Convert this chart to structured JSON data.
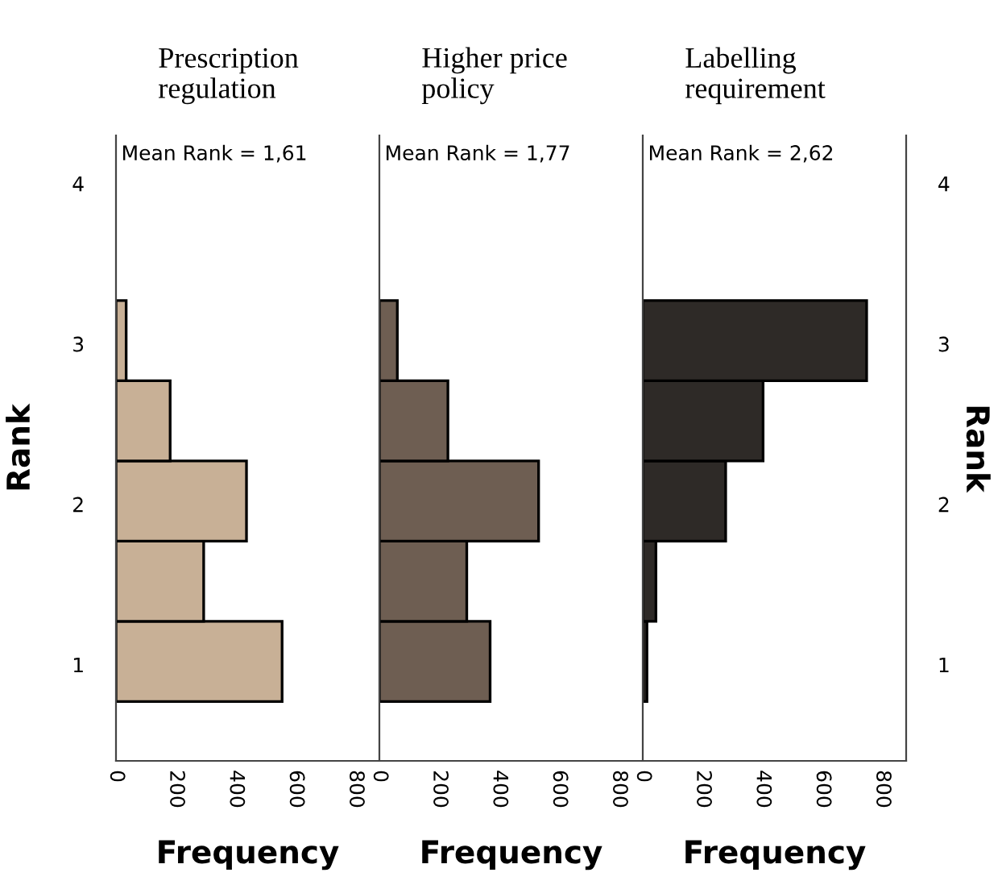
{
  "chart_data": [
    {
      "type": "histogram",
      "orientation": "horizontal",
      "title": "Prescription\nregulation",
      "xlabel": "Frequency",
      "ylabel": "Rank",
      "annotations": [
        "Mean Rank = 1,61"
      ],
      "bins": [
        0.77,
        1.27,
        1.77,
        2.27,
        2.77,
        3.27
      ],
      "values": [
        555,
        293,
        436,
        181,
        34
      ],
      "color": "#c8b096",
      "xlim": [
        0,
        880
      ],
      "xticks": [
        0,
        200,
        400,
        600,
        800
      ],
      "ylim": [
        0.4,
        4.3
      ],
      "yticks": [
        1,
        2,
        3,
        4
      ],
      "grid": false
    },
    {
      "type": "histogram",
      "orientation": "horizontal",
      "title": "Higher price\npolicy",
      "xlabel": "Frequency",
      "annotations": [
        "Mean Rank = 1,77"
      ],
      "bins": [
        0.77,
        1.27,
        1.77,
        2.27,
        2.77,
        3.27
      ],
      "values": [
        370,
        292,
        532,
        229,
        60
      ],
      "color": "#6e5e52",
      "xlim": [
        0,
        880
      ],
      "xticks": [
        0,
        200,
        400,
        600,
        800
      ],
      "ylim": [
        0.4,
        4.3
      ],
      "yticks": [
        1,
        2,
        3,
        4
      ],
      "tick_labels": "x",
      "grid": false
    },
    {
      "type": "histogram",
      "orientation": "horizontal",
      "title": "Labelling\nrequirement",
      "xlabel": "Frequency",
      "ylabel": "Rank",
      "annotations": [
        "Mean Rank = 2,62"
      ],
      "bins": [
        0.77,
        1.27,
        1.77,
        2.27,
        2.77,
        3.27
      ],
      "values": [
        14,
        44,
        277,
        402,
        748
      ],
      "color": "#2e2a27",
      "xlim": [
        0,
        880
      ],
      "xticks": [
        0,
        200,
        400,
        600,
        800
      ],
      "ylim": [
        0.4,
        4.3
      ],
      "yticks": [
        1,
        2,
        3,
        4
      ],
      "grid": false
    }
  ]
}
